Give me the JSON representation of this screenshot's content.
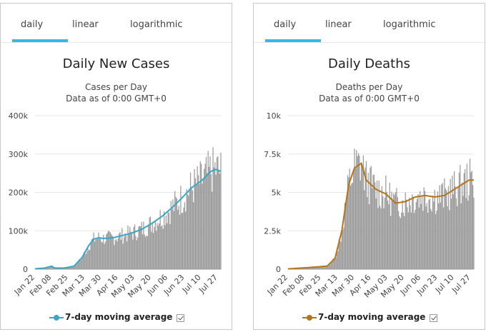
{
  "tabs": [
    "daily",
    "linear",
    "logarithmic"
  ],
  "legend_label": "7-day moving average",
  "colors": {
    "tab_active": "#35b7e8",
    "bars": "#9a9a9a",
    "cases_line": "#39a6c7",
    "deaths_line": "#b7731a"
  },
  "chart_data": [
    {
      "type": "bar",
      "title": "Daily New Cases",
      "subtitle_1": "Cases per Day",
      "subtitle_2": "Data as of 0:00 GMT+0",
      "x_tick_labels": [
        "Jan 22",
        "Feb 08",
        "Feb 25",
        "Mar 13",
        "Mar 30",
        "Apr 16",
        "May 03",
        "May 20",
        "Jun 06",
        "Jun 23",
        "Jul 10",
        "Jul 27"
      ],
      "y_tick_labels": [
        "0",
        "100k",
        "200k",
        "300k",
        "400k"
      ],
      "ylim": [
        0,
        400000
      ],
      "grid": true,
      "legend_position": "bottom",
      "series": [
        {
          "name": "7-day moving average",
          "type": "line",
          "keypoints": [
            [
              0,
              1000
            ],
            [
              10,
              3000
            ],
            [
              17,
              8000
            ],
            [
              20,
              3000
            ],
            [
              30,
              3000
            ],
            [
              40,
              8000
            ],
            [
              48,
              30000
            ],
            [
              55,
              62000
            ],
            [
              60,
              78000
            ],
            [
              65,
              82000
            ],
            [
              70,
              80000
            ],
            [
              80,
              82000
            ],
            [
              90,
              88000
            ],
            [
              100,
              95000
            ],
            [
              110,
              105000
            ],
            [
              120,
              120000
            ],
            [
              130,
              138000
            ],
            [
              140,
              160000
            ],
            [
              150,
              185000
            ],
            [
              160,
              212000
            ],
            [
              170,
              230000
            ],
            [
              180,
              255000
            ],
            [
              185,
              260000
            ],
            [
              190,
              255000
            ]
          ]
        }
      ],
      "bars_note": "daily bars shown behind moving average"
    },
    {
      "type": "bar",
      "title": "Daily Deaths",
      "subtitle_1": "Deaths per Day",
      "subtitle_2": "Data as of 0:00 GMT+0",
      "x_tick_labels": [
        "Jan 22",
        "Feb 08",
        "Feb 25",
        "Mar 13",
        "Mar 30",
        "Apr 16",
        "May 03",
        "May 20",
        "Jun 06",
        "Jun 23",
        "Jul 10",
        "Jul 27"
      ],
      "y_tick_labels": [
        "0",
        "2.5k",
        "5k",
        "7.5k",
        "10k"
      ],
      "ylim": [
        0,
        10000
      ],
      "grid": true,
      "legend_position": "bottom",
      "series": [
        {
          "name": "7-day moving average",
          "type": "line",
          "keypoints": [
            [
              0,
              20
            ],
            [
              20,
              100
            ],
            [
              40,
              200
            ],
            [
              48,
              700
            ],
            [
              55,
              2500
            ],
            [
              62,
              5500
            ],
            [
              68,
              6600
            ],
            [
              75,
              6900
            ],
            [
              80,
              5800
            ],
            [
              90,
              5200
            ],
            [
              100,
              4900
            ],
            [
              110,
              4300
            ],
            [
              120,
              4400
            ],
            [
              130,
              4700
            ],
            [
              140,
              4800
            ],
            [
              150,
              4700
            ],
            [
              160,
              4800
            ],
            [
              170,
              5200
            ],
            [
              180,
              5600
            ],
            [
              185,
              5800
            ],
            [
              190,
              5800
            ]
          ]
        }
      ]
    }
  ]
}
